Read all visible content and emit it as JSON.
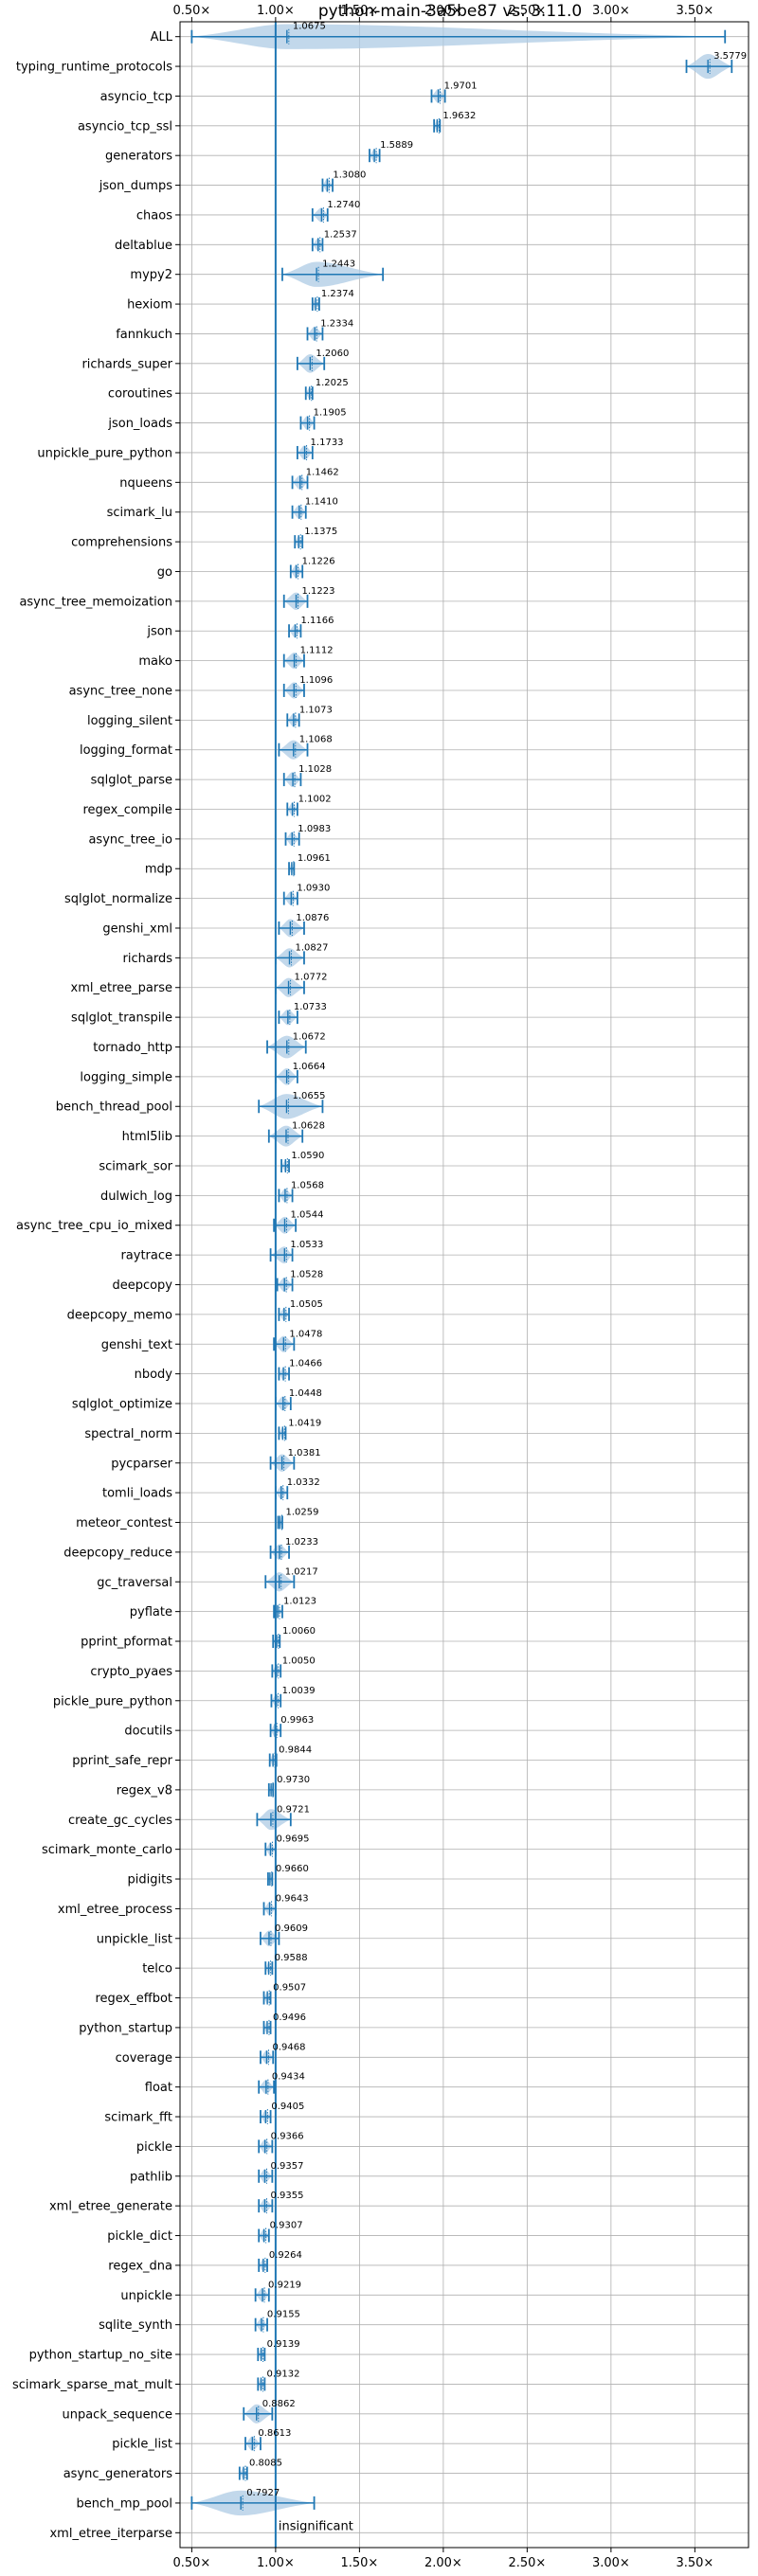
{
  "chart_data": {
    "type": "violin",
    "orientation": "horizontal",
    "title": "python-main-3a5be87 vs. 3.11.0",
    "x_ticks": [
      "0.50×",
      "1.00×",
      "1.50×",
      "2.00×",
      "2.50×",
      "3.00×",
      "3.50×"
    ],
    "x_tick_values": [
      0.5,
      1.0,
      1.5,
      2.0,
      2.5,
      3.0,
      3.5
    ],
    "xlim": [
      0.43,
      3.82
    ],
    "reference_line": 1.0,
    "grid": true,
    "colors": {
      "accent": "#1f77b4",
      "violin_fill": "#aecbe4",
      "grid": "#b0b0b0"
    },
    "insignificant_label": "insignificant",
    "benchmarks": [
      {
        "name": "ALL",
        "label": "1.0675",
        "mean": 1.0675,
        "lo": 0.5,
        "hi": 3.68
      },
      {
        "name": "typing_runtime_protocols",
        "label": "3.5779",
        "mean": 3.5779,
        "lo": 3.45,
        "hi": 3.72
      },
      {
        "name": "asyncio_tcp",
        "label": "1.9701",
        "mean": 1.9701,
        "lo": 1.93,
        "hi": 2.01
      },
      {
        "name": "asyncio_tcp_ssl",
        "label": "1.9632",
        "mean": 1.9632,
        "lo": 1.945,
        "hi": 1.98
      },
      {
        "name": "generators",
        "label": "1.5889",
        "mean": 1.5889,
        "lo": 1.56,
        "hi": 1.62
      },
      {
        "name": "json_dumps",
        "label": "1.3080",
        "mean": 1.308,
        "lo": 1.28,
        "hi": 1.34
      },
      {
        "name": "chaos",
        "label": "1.2740",
        "mean": 1.274,
        "lo": 1.22,
        "hi": 1.31
      },
      {
        "name": "deltablue",
        "label": "1.2537",
        "mean": 1.2537,
        "lo": 1.22,
        "hi": 1.28
      },
      {
        "name": "mypy2",
        "label": "1.2443",
        "mean": 1.2443,
        "lo": 1.04,
        "hi": 1.64
      },
      {
        "name": "hexiom",
        "label": "1.2374",
        "mean": 1.2374,
        "lo": 1.22,
        "hi": 1.26
      },
      {
        "name": "fannkuch",
        "label": "1.2334",
        "mean": 1.2334,
        "lo": 1.19,
        "hi": 1.28
      },
      {
        "name": "richards_super",
        "label": "1.2060",
        "mean": 1.206,
        "lo": 1.13,
        "hi": 1.29
      },
      {
        "name": "coroutines",
        "label": "1.2025",
        "mean": 1.2025,
        "lo": 1.18,
        "hi": 1.22
      },
      {
        "name": "json_loads",
        "label": "1.1905",
        "mean": 1.1905,
        "lo": 1.15,
        "hi": 1.23
      },
      {
        "name": "unpickle_pure_python",
        "label": "1.1733",
        "mean": 1.1733,
        "lo": 1.13,
        "hi": 1.22
      },
      {
        "name": "nqueens",
        "label": "1.1462",
        "mean": 1.1462,
        "lo": 1.1,
        "hi": 1.19
      },
      {
        "name": "scimark_lu",
        "label": "1.1410",
        "mean": 1.141,
        "lo": 1.1,
        "hi": 1.18
      },
      {
        "name": "comprehensions",
        "label": "1.1375",
        "mean": 1.1375,
        "lo": 1.115,
        "hi": 1.16
      },
      {
        "name": "go",
        "label": "1.1226",
        "mean": 1.1226,
        "lo": 1.09,
        "hi": 1.16
      },
      {
        "name": "async_tree_memoization",
        "label": "1.1223",
        "mean": 1.1223,
        "lo": 1.05,
        "hi": 1.19
      },
      {
        "name": "json",
        "label": "1.1166",
        "mean": 1.1166,
        "lo": 1.08,
        "hi": 1.15
      },
      {
        "name": "mako",
        "label": "1.1112",
        "mean": 1.1112,
        "lo": 1.05,
        "hi": 1.17
      },
      {
        "name": "async_tree_none",
        "label": "1.1096",
        "mean": 1.1096,
        "lo": 1.05,
        "hi": 1.17
      },
      {
        "name": "logging_silent",
        "label": "1.1073",
        "mean": 1.1073,
        "lo": 1.07,
        "hi": 1.14
      },
      {
        "name": "logging_format",
        "label": "1.1068",
        "mean": 1.1068,
        "lo": 1.02,
        "hi": 1.19
      },
      {
        "name": "sqlglot_parse",
        "label": "1.1028",
        "mean": 1.1028,
        "lo": 1.05,
        "hi": 1.15
      },
      {
        "name": "regex_compile",
        "label": "1.1002",
        "mean": 1.1002,
        "lo": 1.07,
        "hi": 1.13
      },
      {
        "name": "async_tree_io",
        "label": "1.0983",
        "mean": 1.0983,
        "lo": 1.06,
        "hi": 1.14
      },
      {
        "name": "mdp",
        "label": "1.0961",
        "mean": 1.0961,
        "lo": 1.08,
        "hi": 1.11
      },
      {
        "name": "sqlglot_normalize",
        "label": "1.0930",
        "mean": 1.093,
        "lo": 1.05,
        "hi": 1.13
      },
      {
        "name": "genshi_xml",
        "label": "1.0876",
        "mean": 1.0876,
        "lo": 1.02,
        "hi": 1.17
      },
      {
        "name": "richards",
        "label": "1.0827",
        "mean": 1.0827,
        "lo": 1.0,
        "hi": 1.17
      },
      {
        "name": "xml_etree_parse",
        "label": "1.0772",
        "mean": 1.0772,
        "lo": 1.0,
        "hi": 1.17
      },
      {
        "name": "sqlglot_transpile",
        "label": "1.0733",
        "mean": 1.0733,
        "lo": 1.02,
        "hi": 1.13
      },
      {
        "name": "tornado_http",
        "label": "1.0672",
        "mean": 1.0672,
        "lo": 0.95,
        "hi": 1.18
      },
      {
        "name": "logging_simple",
        "label": "1.0664",
        "mean": 1.0664,
        "lo": 1.0,
        "hi": 1.13
      },
      {
        "name": "bench_thread_pool",
        "label": "1.0655",
        "mean": 1.0655,
        "lo": 0.9,
        "hi": 1.28
      },
      {
        "name": "html5lib",
        "label": "1.0628",
        "mean": 1.0628,
        "lo": 0.96,
        "hi": 1.16
      },
      {
        "name": "scimark_sor",
        "label": "1.0590",
        "mean": 1.059,
        "lo": 1.035,
        "hi": 1.08
      },
      {
        "name": "dulwich_log",
        "label": "1.0568",
        "mean": 1.0568,
        "lo": 1.02,
        "hi": 1.1
      },
      {
        "name": "async_tree_cpu_io_mixed",
        "label": "1.0544",
        "mean": 1.0544,
        "lo": 0.99,
        "hi": 1.12
      },
      {
        "name": "raytrace",
        "label": "1.0533",
        "mean": 1.0533,
        "lo": 0.97,
        "hi": 1.1
      },
      {
        "name": "deepcopy",
        "label": "1.0528",
        "mean": 1.0528,
        "lo": 1.01,
        "hi": 1.1
      },
      {
        "name": "deepcopy_memo",
        "label": "1.0505",
        "mean": 1.0505,
        "lo": 1.02,
        "hi": 1.08
      },
      {
        "name": "genshi_text",
        "label": "1.0478",
        "mean": 1.0478,
        "lo": 0.99,
        "hi": 1.11
      },
      {
        "name": "nbody",
        "label": "1.0466",
        "mean": 1.0466,
        "lo": 1.02,
        "hi": 1.08
      },
      {
        "name": "sqlglot_optimize",
        "label": "1.0448",
        "mean": 1.0448,
        "lo": 1.0,
        "hi": 1.09
      },
      {
        "name": "spectral_norm",
        "label": "1.0419",
        "mean": 1.0419,
        "lo": 1.02,
        "hi": 1.06
      },
      {
        "name": "pycparser",
        "label": "1.0381",
        "mean": 1.0381,
        "lo": 0.97,
        "hi": 1.11
      },
      {
        "name": "tomli_loads",
        "label": "1.0332",
        "mean": 1.0332,
        "lo": 1.0,
        "hi": 1.07
      },
      {
        "name": "meteor_contest",
        "label": "1.0259",
        "mean": 1.0259,
        "lo": 1.015,
        "hi": 1.04
      },
      {
        "name": "deepcopy_reduce",
        "label": "1.0233",
        "mean": 1.0233,
        "lo": 0.97,
        "hi": 1.08
      },
      {
        "name": "gc_traversal",
        "label": "1.0217",
        "mean": 1.0217,
        "lo": 0.94,
        "hi": 1.11
      },
      {
        "name": "pyflate",
        "label": "1.0123",
        "mean": 1.0123,
        "lo": 0.99,
        "hi": 1.04
      },
      {
        "name": "pprint_pformat",
        "label": "1.0060",
        "mean": 1.006,
        "lo": 0.985,
        "hi": 1.025
      },
      {
        "name": "crypto_pyaes",
        "label": "1.0050",
        "mean": 1.005,
        "lo": 0.98,
        "hi": 1.03
      },
      {
        "name": "pickle_pure_python",
        "label": "1.0039",
        "mean": 1.0039,
        "lo": 0.975,
        "hi": 1.03
      },
      {
        "name": "docutils",
        "label": "0.9963",
        "mean": 0.9963,
        "lo": 0.97,
        "hi": 1.03
      },
      {
        "name": "pprint_safe_repr",
        "label": "0.9844",
        "mean": 0.9844,
        "lo": 0.965,
        "hi": 1.005
      },
      {
        "name": "regex_v8",
        "label": "0.9730",
        "mean": 0.973,
        "lo": 0.96,
        "hi": 0.985
      },
      {
        "name": "create_gc_cycles",
        "label": "0.9721",
        "mean": 0.9721,
        "lo": 0.89,
        "hi": 1.09
      },
      {
        "name": "scimark_monte_carlo",
        "label": "0.9695",
        "mean": 0.9695,
        "lo": 0.94,
        "hi": 1.0
      },
      {
        "name": "pidigits",
        "label": "0.9660",
        "mean": 0.966,
        "lo": 0.955,
        "hi": 0.98
      },
      {
        "name": "xml_etree_process",
        "label": "0.9643",
        "mean": 0.9643,
        "lo": 0.93,
        "hi": 1.0
      },
      {
        "name": "unpickle_list",
        "label": "0.9609",
        "mean": 0.9609,
        "lo": 0.91,
        "hi": 1.02
      },
      {
        "name": "telco",
        "label": "0.9588",
        "mean": 0.9588,
        "lo": 0.94,
        "hi": 0.98
      },
      {
        "name": "regex_effbot",
        "label": "0.9507",
        "mean": 0.9507,
        "lo": 0.93,
        "hi": 0.97
      },
      {
        "name": "python_startup",
        "label": "0.9496",
        "mean": 0.9496,
        "lo": 0.93,
        "hi": 0.97
      },
      {
        "name": "coverage",
        "label": "0.9468",
        "mean": 0.9468,
        "lo": 0.91,
        "hi": 0.985
      },
      {
        "name": "float",
        "label": "0.9434",
        "mean": 0.9434,
        "lo": 0.9,
        "hi": 0.99
      },
      {
        "name": "scimark_fft",
        "label": "0.9405",
        "mean": 0.9405,
        "lo": 0.91,
        "hi": 0.97
      },
      {
        "name": "pickle",
        "label": "0.9366",
        "mean": 0.9366,
        "lo": 0.9,
        "hi": 0.98
      },
      {
        "name": "pathlib",
        "label": "0.9357",
        "mean": 0.9357,
        "lo": 0.9,
        "hi": 0.98
      },
      {
        "name": "xml_etree_generate",
        "label": "0.9355",
        "mean": 0.9355,
        "lo": 0.9,
        "hi": 0.98
      },
      {
        "name": "pickle_dict",
        "label": "0.9307",
        "mean": 0.9307,
        "lo": 0.9,
        "hi": 0.96
      },
      {
        "name": "regex_dna",
        "label": "0.9264",
        "mean": 0.9264,
        "lo": 0.9,
        "hi": 0.95
      },
      {
        "name": "unpickle",
        "label": "0.9219",
        "mean": 0.9219,
        "lo": 0.88,
        "hi": 0.96
      },
      {
        "name": "sqlite_synth",
        "label": "0.9155",
        "mean": 0.9155,
        "lo": 0.88,
        "hi": 0.95
      },
      {
        "name": "python_startup_no_site",
        "label": "0.9139",
        "mean": 0.9139,
        "lo": 0.895,
        "hi": 0.935
      },
      {
        "name": "scimark_sparse_mat_mult",
        "label": "0.9132",
        "mean": 0.9132,
        "lo": 0.895,
        "hi": 0.935
      },
      {
        "name": "unpack_sequence",
        "label": "0.8862",
        "mean": 0.8862,
        "lo": 0.81,
        "hi": 0.98
      },
      {
        "name": "pickle_list",
        "label": "0.8613",
        "mean": 0.8613,
        "lo": 0.82,
        "hi": 0.91
      },
      {
        "name": "async_generators",
        "label": "0.8085",
        "mean": 0.8085,
        "lo": 0.785,
        "hi": 0.83
      },
      {
        "name": "bench_mp_pool",
        "label": "0.7927",
        "mean": 0.7927,
        "lo": 0.5,
        "hi": 1.23
      },
      {
        "name": "xml_etree_iterparse",
        "label": "",
        "mean": null,
        "lo": null,
        "hi": null,
        "insignificant": true
      }
    ]
  }
}
